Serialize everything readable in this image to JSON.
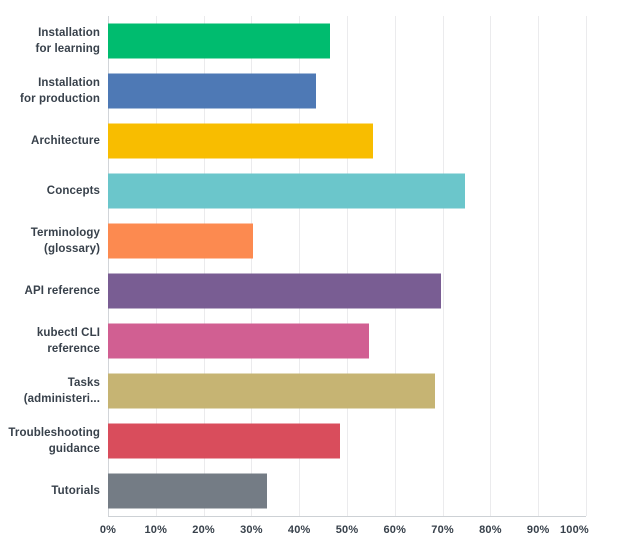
{
  "chart_data": {
    "type": "bar",
    "orientation": "horizontal",
    "title": "",
    "xlabel": "",
    "ylabel": "",
    "xlim": [
      0,
      100
    ],
    "unit": "percent",
    "grid": "vertical-only",
    "legend": "none",
    "x_tick_labels": [
      "0%",
      "10%",
      "20%",
      "30%",
      "40%",
      "50%",
      "60%",
      "70%",
      "80%",
      "90%",
      "100%"
    ],
    "categories": [
      "Installation for learning",
      "Installation for production",
      "Architecture",
      "Concepts",
      "Terminology (glossary)",
      "API reference",
      "kubectl CLI reference",
      "Tasks (administeri...",
      "Troubleshooting guidance",
      "Tutorials"
    ],
    "category_label_lines": [
      [
        "Installation",
        "for learning"
      ],
      [
        "Installation",
        "for production"
      ],
      [
        "Architecture"
      ],
      [
        "Concepts"
      ],
      [
        "Terminology",
        "(glossary)"
      ],
      [
        "API reference"
      ],
      [
        "kubectl CLI",
        "reference"
      ],
      [
        "Tasks",
        "(administeri..."
      ],
      [
        "Troubleshooting",
        "guidance"
      ],
      [
        "Tutorials"
      ]
    ],
    "values": [
      46.5,
      43.5,
      55.5,
      74.7,
      30.4,
      69.7,
      54.5,
      68.5,
      48.5,
      33.2
    ],
    "bar_colors": [
      "#00bc6f",
      "#4e79b5",
      "#f8bd00",
      "#6bc6cb",
      "#fc8a50",
      "#795d93",
      "#d15f92",
      "#c6b473",
      "#d94d5c",
      "#747c85"
    ]
  },
  "colors": {
    "background": "#ffffff",
    "gridline": "#ebebed",
    "axis_line": "#cdd1d5",
    "text": "#38414b"
  }
}
